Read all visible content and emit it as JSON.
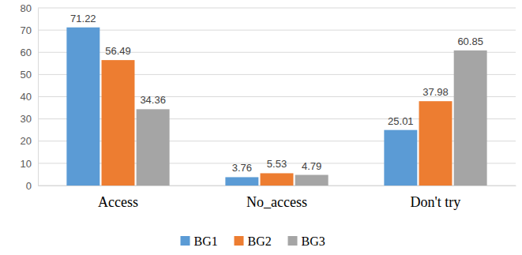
{
  "chart_data": {
    "type": "bar",
    "categories": [
      "Access",
      "No_access",
      "Don't try"
    ],
    "series": [
      {
        "name": "BG1",
        "color": "#5b9bd5",
        "values": [
          71.22,
          3.76,
          25.01
        ]
      },
      {
        "name": "BG2",
        "color": "#ed7d31",
        "values": [
          56.49,
          5.53,
          37.98
        ]
      },
      {
        "name": "BG3",
        "color": "#a5a5a5",
        "values": [
          34.36,
          4.79,
          60.85
        ]
      }
    ],
    "ylim": [
      0,
      80
    ],
    "yticks": [
      0,
      10,
      20,
      30,
      40,
      50,
      60,
      70,
      80
    ],
    "grid": true,
    "data_labels": true,
    "legend": "bottom"
  }
}
